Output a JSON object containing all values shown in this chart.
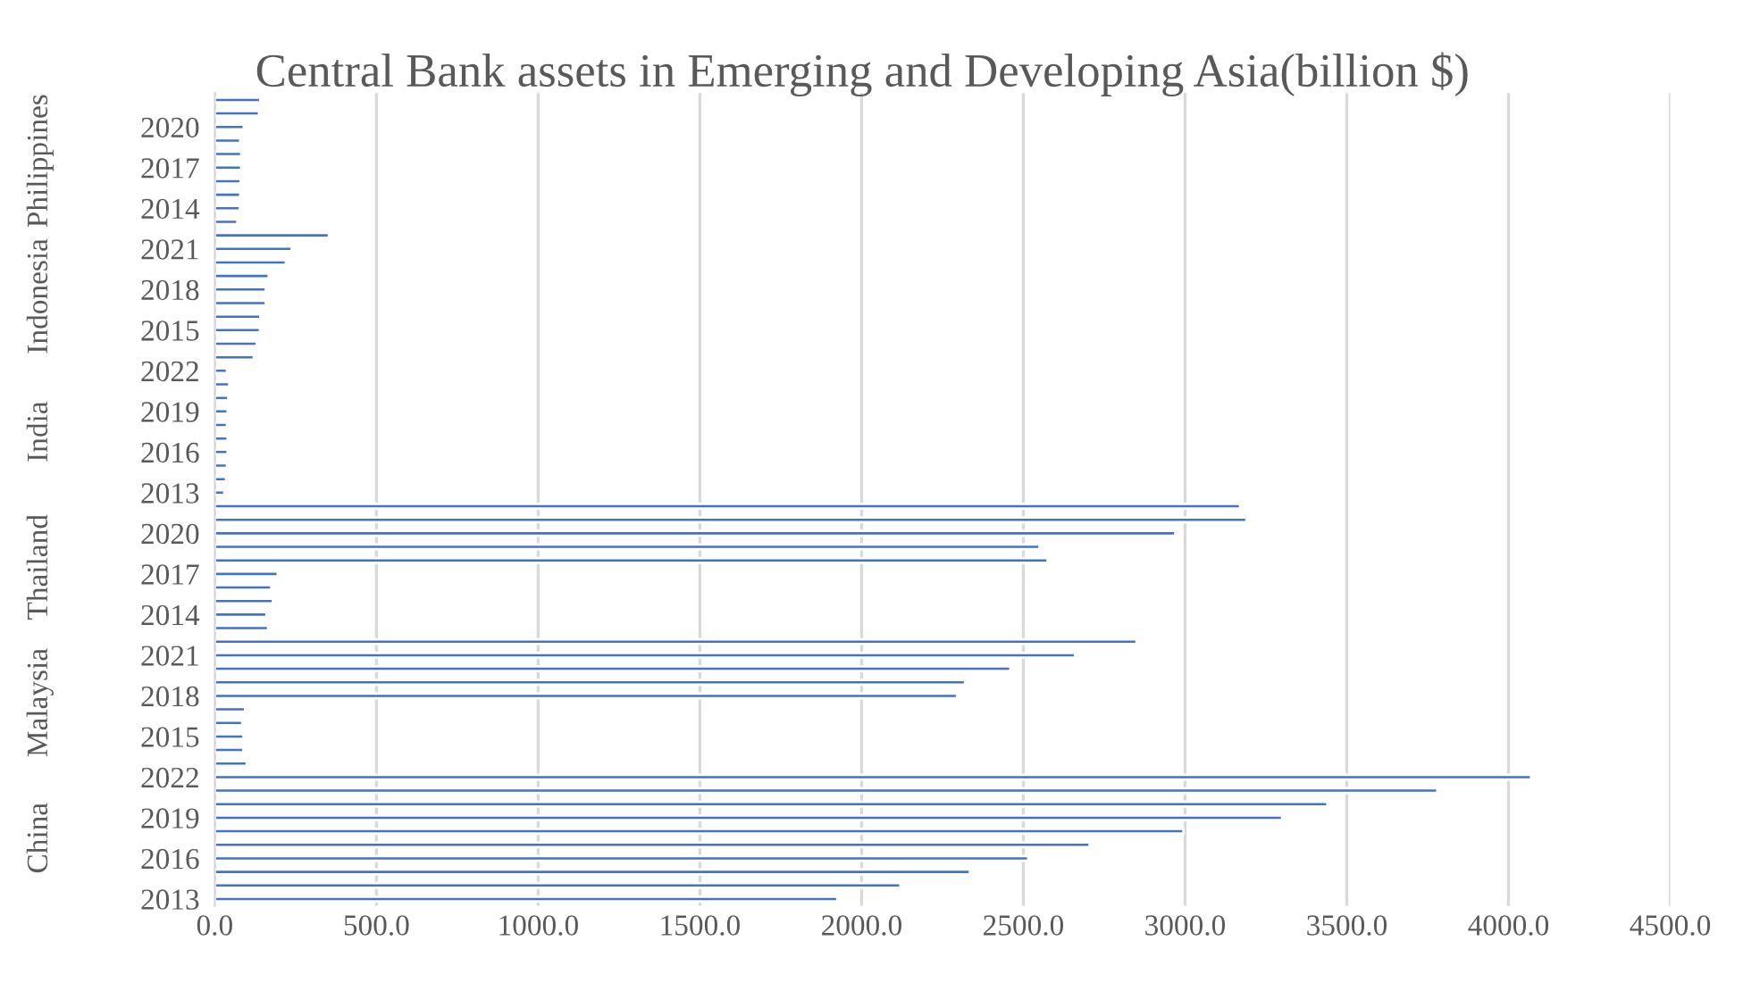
{
  "chart_data": {
    "type": "bar",
    "orientation": "horizontal",
    "title": "Central Bank assets in Emerging and Developing Asia(billion $)",
    "categories": [
      null,
      null,
      "2020",
      null,
      null,
      "2017",
      null,
      null,
      "2014",
      null,
      null,
      "2021",
      null,
      null,
      "2018",
      null,
      null,
      "2015",
      null,
      null,
      "2022",
      null,
      null,
      "2019",
      null,
      null,
      "2016",
      null,
      null,
      "2013",
      null,
      null,
      "2020",
      null,
      null,
      "2017",
      null,
      null,
      "2014",
      null,
      null,
      "2021",
      null,
      null,
      "2018",
      null,
      null,
      "2015",
      null,
      null,
      "2022",
      null,
      null,
      "2019",
      null,
      null,
      "2016",
      null,
      null,
      "2013"
    ],
    "series": [
      {
        "color": "#4472c4",
        "values": [
          141,
          137,
          90,
          79,
          82,
          82,
          80,
          79,
          78,
          70,
          null,
          null,
          null,
          null,
          null,
          null,
          null,
          null,
          null,
          null,
          null,
          null,
          null,
          null,
          null,
          null,
          null,
          null,
          null,
          null,
          null,
          null,
          null,
          null,
          null,
          null,
          null,
          null,
          null,
          null,
          null,
          null,
          null,
          null,
          null,
          null,
          null,
          null,
          null,
          null,
          null,
          null,
          null,
          null,
          null,
          null,
          null,
          null,
          null,
          null
        ]
      },
      {
        "color": "#4472c4",
        "values": [
          null,
          null,
          null,
          null,
          null,
          null,
          null,
          null,
          null,
          null,
          353,
          238,
          220,
          167,
          158,
          158,
          141,
          140,
          130,
          121,
          null,
          null,
          null,
          null,
          null,
          null,
          null,
          null,
          null,
          null,
          null,
          null,
          null,
          null,
          null,
          null,
          null,
          null,
          null,
          null,
          null,
          null,
          null,
          null,
          null,
          null,
          null,
          null,
          null,
          null,
          null,
          null,
          null,
          null,
          null,
          null,
          null,
          null,
          null,
          null
        ]
      },
      {
        "color": "#4472c4",
        "values": [
          null,
          null,
          null,
          null,
          null,
          null,
          null,
          null,
          null,
          null,
          null,
          null,
          null,
          null,
          null,
          null,
          null,
          null,
          null,
          null,
          38,
          45,
          42,
          40,
          38,
          40,
          40,
          38,
          35,
          30,
          null,
          null,
          null,
          null,
          null,
          null,
          null,
          null,
          null,
          null,
          null,
          null,
          null,
          null,
          null,
          null,
          null,
          null,
          null,
          null,
          null,
          null,
          null,
          null,
          null,
          null,
          null,
          null,
          null,
          null
        ]
      },
      {
        "color": "#4472c4",
        "values": [
          null,
          null,
          null,
          null,
          null,
          null,
          null,
          null,
          null,
          null,
          null,
          null,
          null,
          null,
          null,
          null,
          null,
          null,
          null,
          null,
          null,
          null,
          null,
          null,
          null,
          null,
          null,
          null,
          null,
          null,
          3170,
          3190,
          2970,
          2550,
          2575,
          195,
          175,
          180,
          160,
          165,
          null,
          null,
          null,
          null,
          null,
          null,
          null,
          null,
          null,
          null,
          null,
          null,
          null,
          null,
          null,
          null,
          null,
          null,
          null,
          null
        ]
      },
      {
        "color": "#4472c4",
        "values": [
          null,
          null,
          null,
          null,
          null,
          null,
          null,
          null,
          null,
          null,
          null,
          null,
          null,
          null,
          null,
          null,
          null,
          null,
          null,
          null,
          null,
          null,
          null,
          null,
          null,
          null,
          null,
          null,
          null,
          null,
          null,
          null,
          null,
          null,
          null,
          null,
          null,
          null,
          null,
          null,
          2850,
          2660,
          2460,
          2320,
          2295,
          94,
          85,
          89,
          89,
          99,
          null,
          null,
          null,
          null,
          null,
          null,
          null,
          null,
          null,
          null
        ]
      },
      {
        "color": "#4472c4",
        "values": [
          null,
          null,
          null,
          null,
          null,
          null,
          null,
          null,
          null,
          null,
          null,
          null,
          null,
          null,
          null,
          null,
          null,
          null,
          null,
          null,
          null,
          null,
          null,
          null,
          null,
          null,
          null,
          null,
          null,
          null,
          null,
          null,
          null,
          null,
          null,
          null,
          null,
          null,
          null,
          null,
          null,
          null,
          null,
          null,
          null,
          null,
          null,
          null,
          null,
          null,
          4070,
          3780,
          3440,
          3300,
          2995,
          2705,
          2515,
          2335,
          2120,
          1925
        ]
      }
    ],
    "xlim": [
      0,
      4500
    ],
    "xticks": [
      {
        "value": 0,
        "label": "0.0"
      },
      {
        "value": 500,
        "label": "500.0"
      },
      {
        "value": 1000,
        "label": "1000.0"
      },
      {
        "value": 1500,
        "label": "1500.0"
      },
      {
        "value": 2000,
        "label": "2000.0"
      },
      {
        "value": 2500,
        "label": "2500.0"
      },
      {
        "value": 3000,
        "label": "3000.0"
      },
      {
        "value": 3500,
        "label": "3500.0"
      },
      {
        "value": 4000,
        "label": "4000.0"
      },
      {
        "value": 4500,
        "label": "4500.0"
      }
    ],
    "annotations": [
      "Philippines",
      "Indonesia",
      "India",
      "Thailand",
      "Malaysia",
      "China"
    ],
    "grid": "x"
  }
}
